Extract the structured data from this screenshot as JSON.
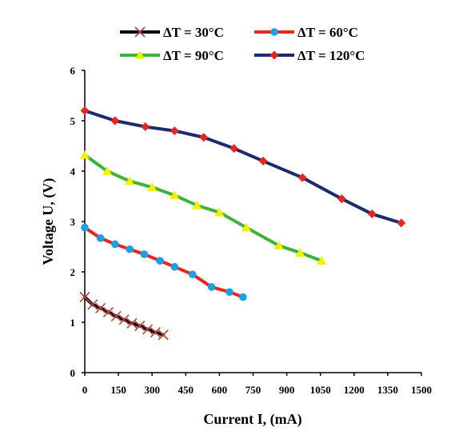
{
  "chart_data": {
    "type": "line",
    "xlabel": "Current I, (mA)",
    "ylabel": "Voltage U, (V)",
    "xlim": [
      0,
      1500
    ],
    "ylim": [
      0,
      6
    ],
    "xticks": [
      0,
      150,
      300,
      450,
      600,
      750,
      900,
      1050,
      1200,
      1350,
      1500
    ],
    "yticks": [
      0,
      1,
      2,
      3,
      4,
      5,
      6
    ],
    "grid": false,
    "legend_position": "top",
    "series": [
      {
        "name": "ΔT = 30°C",
        "line_color": "#000000",
        "marker_color": "#b5473a",
        "marker": "x",
        "x": [
          0,
          35,
          70,
          105,
          140,
          175,
          210,
          245,
          280,
          315,
          350
        ],
        "y": [
          1.5,
          1.35,
          1.28,
          1.2,
          1.12,
          1.05,
          0.98,
          0.93,
          0.86,
          0.8,
          0.75
        ]
      },
      {
        "name": "ΔT = 60°C",
        "line_color": "#e8251f",
        "marker_color": "#1ba1e2",
        "marker": "circle",
        "x": [
          0,
          70,
          135,
          200,
          265,
          335,
          400,
          480,
          565,
          645,
          705
        ],
        "y": [
          2.88,
          2.67,
          2.55,
          2.45,
          2.35,
          2.22,
          2.1,
          1.95,
          1.7,
          1.6,
          1.5
        ]
      },
      {
        "name": "ΔT = 90°C",
        "line_color": "#3fb23a",
        "marker_color": "#f5f000",
        "marker": "triangle",
        "x": [
          0,
          100,
          200,
          300,
          400,
          500,
          600,
          720,
          865,
          960,
          1055
        ],
        "y": [
          4.32,
          4.0,
          3.8,
          3.68,
          3.52,
          3.32,
          3.18,
          2.88,
          2.52,
          2.38,
          2.22
        ]
      },
      {
        "name": "ΔT = 120°C",
        "line_color": "#1b2b6b",
        "marker_color": "#e8251f",
        "marker": "diamond",
        "x": [
          0,
          135,
          270,
          400,
          530,
          665,
          795,
          970,
          1145,
          1280,
          1410
        ],
        "y": [
          5.2,
          5.0,
          4.88,
          4.8,
          4.67,
          4.45,
          4.2,
          3.87,
          3.45,
          3.15,
          2.97
        ]
      }
    ]
  }
}
